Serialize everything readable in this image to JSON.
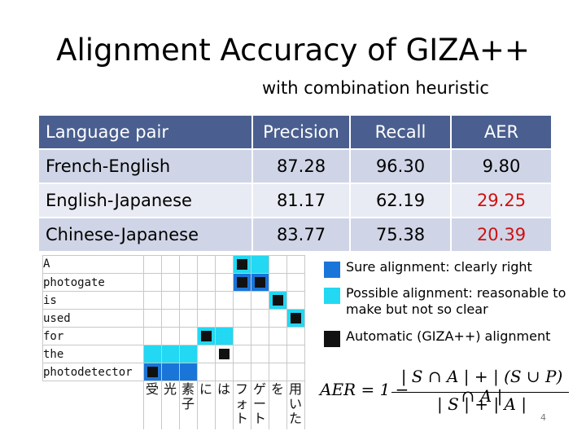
{
  "title": "Alignment Accuracy of GIZA++",
  "subtitle": "with combination heuristic",
  "table": {
    "headers": [
      "Language pair",
      "Precision",
      "Recall",
      "AER"
    ],
    "rows": [
      {
        "pair": "French-English",
        "precision": "87.28",
        "recall": "96.30",
        "aer": "9.80"
      },
      {
        "pair": "English-Japanese",
        "precision": "81.17",
        "recall": "62.19",
        "aer": "29.25"
      },
      {
        "pair": "Chinese-Japanese",
        "precision": "83.77",
        "recall": "75.38",
        "aer": "20.39"
      }
    ],
    "highlight_color": "#d01010"
  },
  "grid": {
    "english_words": [
      "A",
      "photogate",
      "is",
      "used",
      "for",
      "the",
      "photodetector"
    ],
    "japanese_columns": [
      [
        "受"
      ],
      [
        "光"
      ],
      [
        "素",
        "子"
      ],
      [
        "に"
      ],
      [
        "は"
      ],
      [
        "フ",
        "ォ",
        "ト"
      ],
      [
        "ゲ",
        "ー",
        "ト"
      ],
      [
        "を"
      ],
      [
        "用",
        "い",
        "た"
      ]
    ]
  },
  "legend": {
    "sure": "Sure alignment: clearly right",
    "possible": "Possible alignment: reasonable to make but not so clear",
    "automatic": "Automatic (GIZA++) alignment",
    "colors": {
      "sure": "#1a75d8",
      "possible": "#22d8f2",
      "automatic": "#111111"
    }
  },
  "formula": {
    "lhs": "AER = 1 −",
    "numerator": "| S ∩ A | + | (S ∪ P) ∩ A |",
    "denominator": "| S | + | A |"
  },
  "page_number": "4"
}
